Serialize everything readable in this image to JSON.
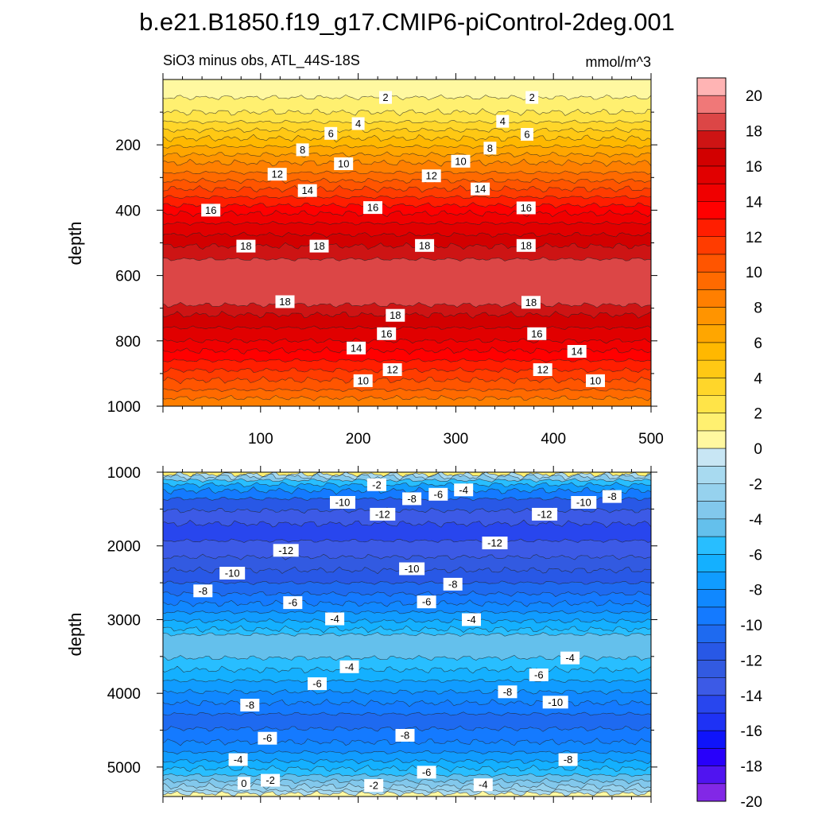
{
  "chart_data": [
    {
      "type": "contour",
      "panel": "upper",
      "title": "b.e21.B1850.f19_g17.CMIP6-piControl-2deg.001",
      "subtitle_left": "SiO3 minus obs, ATL_44S-18S",
      "subtitle_right": "mmol/m^3",
      "ylabel": "depth",
      "xlim": [
        0,
        500
      ],
      "ylim": [
        1000,
        0
      ],
      "x_ticks": [
        100,
        200,
        300,
        400,
        500
      ],
      "y_ticks": [
        200,
        400,
        600,
        800,
        1000
      ],
      "x_tick_labels": [
        "100",
        "200",
        "300",
        "400",
        "500"
      ],
      "y_tick_labels": [
        "200",
        "400",
        "600",
        "800",
        "1000"
      ],
      "levels": [
        {
          "depth": 0,
          "value": 1
        },
        {
          "depth": 55,
          "value": 2
        },
        {
          "depth": 100,
          "value": 3
        },
        {
          "depth": 130,
          "value": 4
        },
        {
          "depth": 155,
          "value": 5
        },
        {
          "depth": 180,
          "value": 6
        },
        {
          "depth": 205,
          "value": 7
        },
        {
          "depth": 230,
          "value": 8
        },
        {
          "depth": 255,
          "value": 9
        },
        {
          "depth": 285,
          "value": 10
        },
        {
          "depth": 310,
          "value": 11
        },
        {
          "depth": 335,
          "value": 12
        },
        {
          "depth": 360,
          "value": 13
        },
        {
          "depth": 385,
          "value": 14
        },
        {
          "depth": 410,
          "value": 15
        },
        {
          "depth": 440,
          "value": 16
        },
        {
          "depth": 475,
          "value": 17
        },
        {
          "depth": 510,
          "value": 18
        },
        {
          "depth": 550,
          "value": 18.5
        },
        {
          "depth": 690,
          "value": 18
        },
        {
          "depth": 720,
          "value": 17
        },
        {
          "depth": 760,
          "value": 16
        },
        {
          "depth": 800,
          "value": 15
        },
        {
          "depth": 830,
          "value": 14
        },
        {
          "depth": 860,
          "value": 13
        },
        {
          "depth": 890,
          "value": 12
        },
        {
          "depth": 920,
          "value": 11
        },
        {
          "depth": 950,
          "value": 10
        },
        {
          "depth": 975,
          "value": 9
        }
      ],
      "contour_labels": [
        {
          "text": "2",
          "x": 228,
          "depth": 55
        },
        {
          "text": "2",
          "x": 378,
          "depth": 55
        },
        {
          "text": "4",
          "x": 200,
          "depth": 135
        },
        {
          "text": "4",
          "x": 348,
          "depth": 128
        },
        {
          "text": "6",
          "x": 172,
          "depth": 165
        },
        {
          "text": "6",
          "x": 373,
          "depth": 168
        },
        {
          "text": "8",
          "x": 143,
          "depth": 215
        },
        {
          "text": "8",
          "x": 335,
          "depth": 210
        },
        {
          "text": "10",
          "x": 185,
          "depth": 258
        },
        {
          "text": "10",
          "x": 305,
          "depth": 250
        },
        {
          "text": "12",
          "x": 117,
          "depth": 290
        },
        {
          "text": "12",
          "x": 275,
          "depth": 295
        },
        {
          "text": "14",
          "x": 148,
          "depth": 340
        },
        {
          "text": "14",
          "x": 325,
          "depth": 335
        },
        {
          "text": "16",
          "x": 49,
          "depth": 400
        },
        {
          "text": "16",
          "x": 215,
          "depth": 392
        },
        {
          "text": "16",
          "x": 372,
          "depth": 393
        },
        {
          "text": "18",
          "x": 85,
          "depth": 510
        },
        {
          "text": "18",
          "x": 160,
          "depth": 510
        },
        {
          "text": "18",
          "x": 268,
          "depth": 508
        },
        {
          "text": "18",
          "x": 372,
          "depth": 508
        },
        {
          "text": "18",
          "x": 125,
          "depth": 680
        },
        {
          "text": "18",
          "x": 238,
          "depth": 722
        },
        {
          "text": "18",
          "x": 377,
          "depth": 682
        },
        {
          "text": "16",
          "x": 229,
          "depth": 778
        },
        {
          "text": "16",
          "x": 383,
          "depth": 778
        },
        {
          "text": "14",
          "x": 198,
          "depth": 822
        },
        {
          "text": "14",
          "x": 424,
          "depth": 832
        },
        {
          "text": "12",
          "x": 235,
          "depth": 888
        },
        {
          "text": "12",
          "x": 389,
          "depth": 888
        },
        {
          "text": "10",
          "x": 205,
          "depth": 922
        },
        {
          "text": "10",
          "x": 443,
          "depth": 922
        }
      ]
    },
    {
      "type": "contour",
      "panel": "lower",
      "ylabel": "depth",
      "xlim": [
        0,
        500
      ],
      "ylim": [
        5400,
        1000
      ],
      "y_ticks": [
        1000,
        2000,
        3000,
        4000,
        5000
      ],
      "y_tick_labels": [
        "1000",
        "2000",
        "3000",
        "4000",
        "5000"
      ],
      "levels": [
        {
          "depth": 1000,
          "value": 2
        },
        {
          "depth": 1030,
          "value": -1
        },
        {
          "depth": 1060,
          "value": -3
        },
        {
          "depth": 1110,
          "value": -5
        },
        {
          "depth": 1170,
          "value": -7
        },
        {
          "depth": 1250,
          "value": -9
        },
        {
          "depth": 1360,
          "value": -11
        },
        {
          "depth": 1520,
          "value": -13
        },
        {
          "depth": 1700,
          "value": -14
        },
        {
          "depth": 1930,
          "value": -13
        },
        {
          "depth": 2150,
          "value": -12
        },
        {
          "depth": 2330,
          "value": -11
        },
        {
          "depth": 2500,
          "value": -10
        },
        {
          "depth": 2650,
          "value": -9
        },
        {
          "depth": 2780,
          "value": -8
        },
        {
          "depth": 2900,
          "value": -7
        },
        {
          "depth": 3020,
          "value": -6
        },
        {
          "depth": 3130,
          "value": -5
        },
        {
          "depth": 3200,
          "value": -4
        },
        {
          "depth": 3520,
          "value": -5
        },
        {
          "depth": 3680,
          "value": -6
        },
        {
          "depth": 3830,
          "value": -7
        },
        {
          "depth": 3980,
          "value": -8
        },
        {
          "depth": 4130,
          "value": -9
        },
        {
          "depth": 4280,
          "value": -10
        },
        {
          "depth": 4480,
          "value": -9
        },
        {
          "depth": 4660,
          "value": -8
        },
        {
          "depth": 4800,
          "value": -7
        },
        {
          "depth": 4920,
          "value": -6
        },
        {
          "depth": 5020,
          "value": -5
        },
        {
          "depth": 5110,
          "value": -4
        },
        {
          "depth": 5190,
          "value": -3
        },
        {
          "depth": 5260,
          "value": -2
        },
        {
          "depth": 5320,
          "value": -1
        },
        {
          "depth": 5360,
          "value": 1
        }
      ],
      "contour_labels": [
        {
          "text": "-2",
          "x": 219,
          "depth": 1170
        },
        {
          "text": "-8",
          "x": 255,
          "depth": 1360
        },
        {
          "text": "-6",
          "x": 282,
          "depth": 1300
        },
        {
          "text": "-4",
          "x": 308,
          "depth": 1240
        },
        {
          "text": "-10",
          "x": 184,
          "depth": 1410
        },
        {
          "text": "-12",
          "x": 225,
          "depth": 1570
        },
        {
          "text": "-12",
          "x": 391,
          "depth": 1570
        },
        {
          "text": "-10",
          "x": 431,
          "depth": 1410
        },
        {
          "text": "-8",
          "x": 460,
          "depth": 1330
        },
        {
          "text": "-12",
          "x": 340,
          "depth": 1960
        },
        {
          "text": "-12",
          "x": 126,
          "depth": 2060
        },
        {
          "text": "-10",
          "x": 255,
          "depth": 2310
        },
        {
          "text": "-10",
          "x": 71,
          "depth": 2370
        },
        {
          "text": "-8",
          "x": 41,
          "depth": 2610
        },
        {
          "text": "-8",
          "x": 297,
          "depth": 2520
        },
        {
          "text": "-6",
          "x": 133,
          "depth": 2770
        },
        {
          "text": "-6",
          "x": 270,
          "depth": 2760
        },
        {
          "text": "-4",
          "x": 176,
          "depth": 2990
        },
        {
          "text": "-4",
          "x": 316,
          "depth": 3000
        },
        {
          "text": "-4",
          "x": 191,
          "depth": 3640
        },
        {
          "text": "-4",
          "x": 417,
          "depth": 3520
        },
        {
          "text": "-6",
          "x": 158,
          "depth": 3870
        },
        {
          "text": "-6",
          "x": 385,
          "depth": 3750
        },
        {
          "text": "-8",
          "x": 353,
          "depth": 3980
        },
        {
          "text": "-10",
          "x": 402,
          "depth": 4120
        },
        {
          "text": "-8",
          "x": 89,
          "depth": 4160
        },
        {
          "text": "-6",
          "x": 107,
          "depth": 4610
        },
        {
          "text": "-8",
          "x": 248,
          "depth": 4570
        },
        {
          "text": "-4",
          "x": 77,
          "depth": 4900
        },
        {
          "text": "-8",
          "x": 415,
          "depth": 4900
        },
        {
          "text": "-6",
          "x": 270,
          "depth": 5070
        },
        {
          "text": "0",
          "x": 83,
          "depth": 5220
        },
        {
          "text": "-2",
          "x": 110,
          "depth": 5180
        },
        {
          "text": "-2",
          "x": 216,
          "depth": 5250
        },
        {
          "text": "-4",
          "x": 328,
          "depth": 5240
        }
      ]
    },
    {
      "type": "colorbar",
      "tick_labels": [
        "20",
        "18",
        "16",
        "14",
        "12",
        "10",
        "8",
        "6",
        "4",
        "2",
        "0",
        "-2",
        "-4",
        "-6",
        "-8",
        "-10",
        "-12",
        "-14",
        "-16",
        "-18",
        "-20"
      ],
      "colors": [
        "#ffb4b4",
        "#f07878",
        "#dc4646",
        "#cd1414",
        "#d20000",
        "#e10000",
        "#f00000",
        "#ff0000",
        "#ff1e00",
        "#ff3c00",
        "#ff5500",
        "#ff6a00",
        "#ff7f00",
        "#ff9400",
        "#ffa600",
        "#ffb800",
        "#ffc814",
        "#ffd62a",
        "#ffe448",
        "#fff070",
        "#fff8a0",
        "#c8e6f4",
        "#a8daf0",
        "#96d2ee",
        "#82c8ec",
        "#64c0ec",
        "#28beff",
        "#14b0ff",
        "#109cff",
        "#1088ff",
        "#147aff",
        "#1e6af0",
        "#2858e6",
        "#325ae1",
        "#3c5ae6",
        "#2846ee",
        "#1e32f5",
        "#0f14fa",
        "#2800fa",
        "#5014f0",
        "#8228e6"
      ]
    }
  ]
}
